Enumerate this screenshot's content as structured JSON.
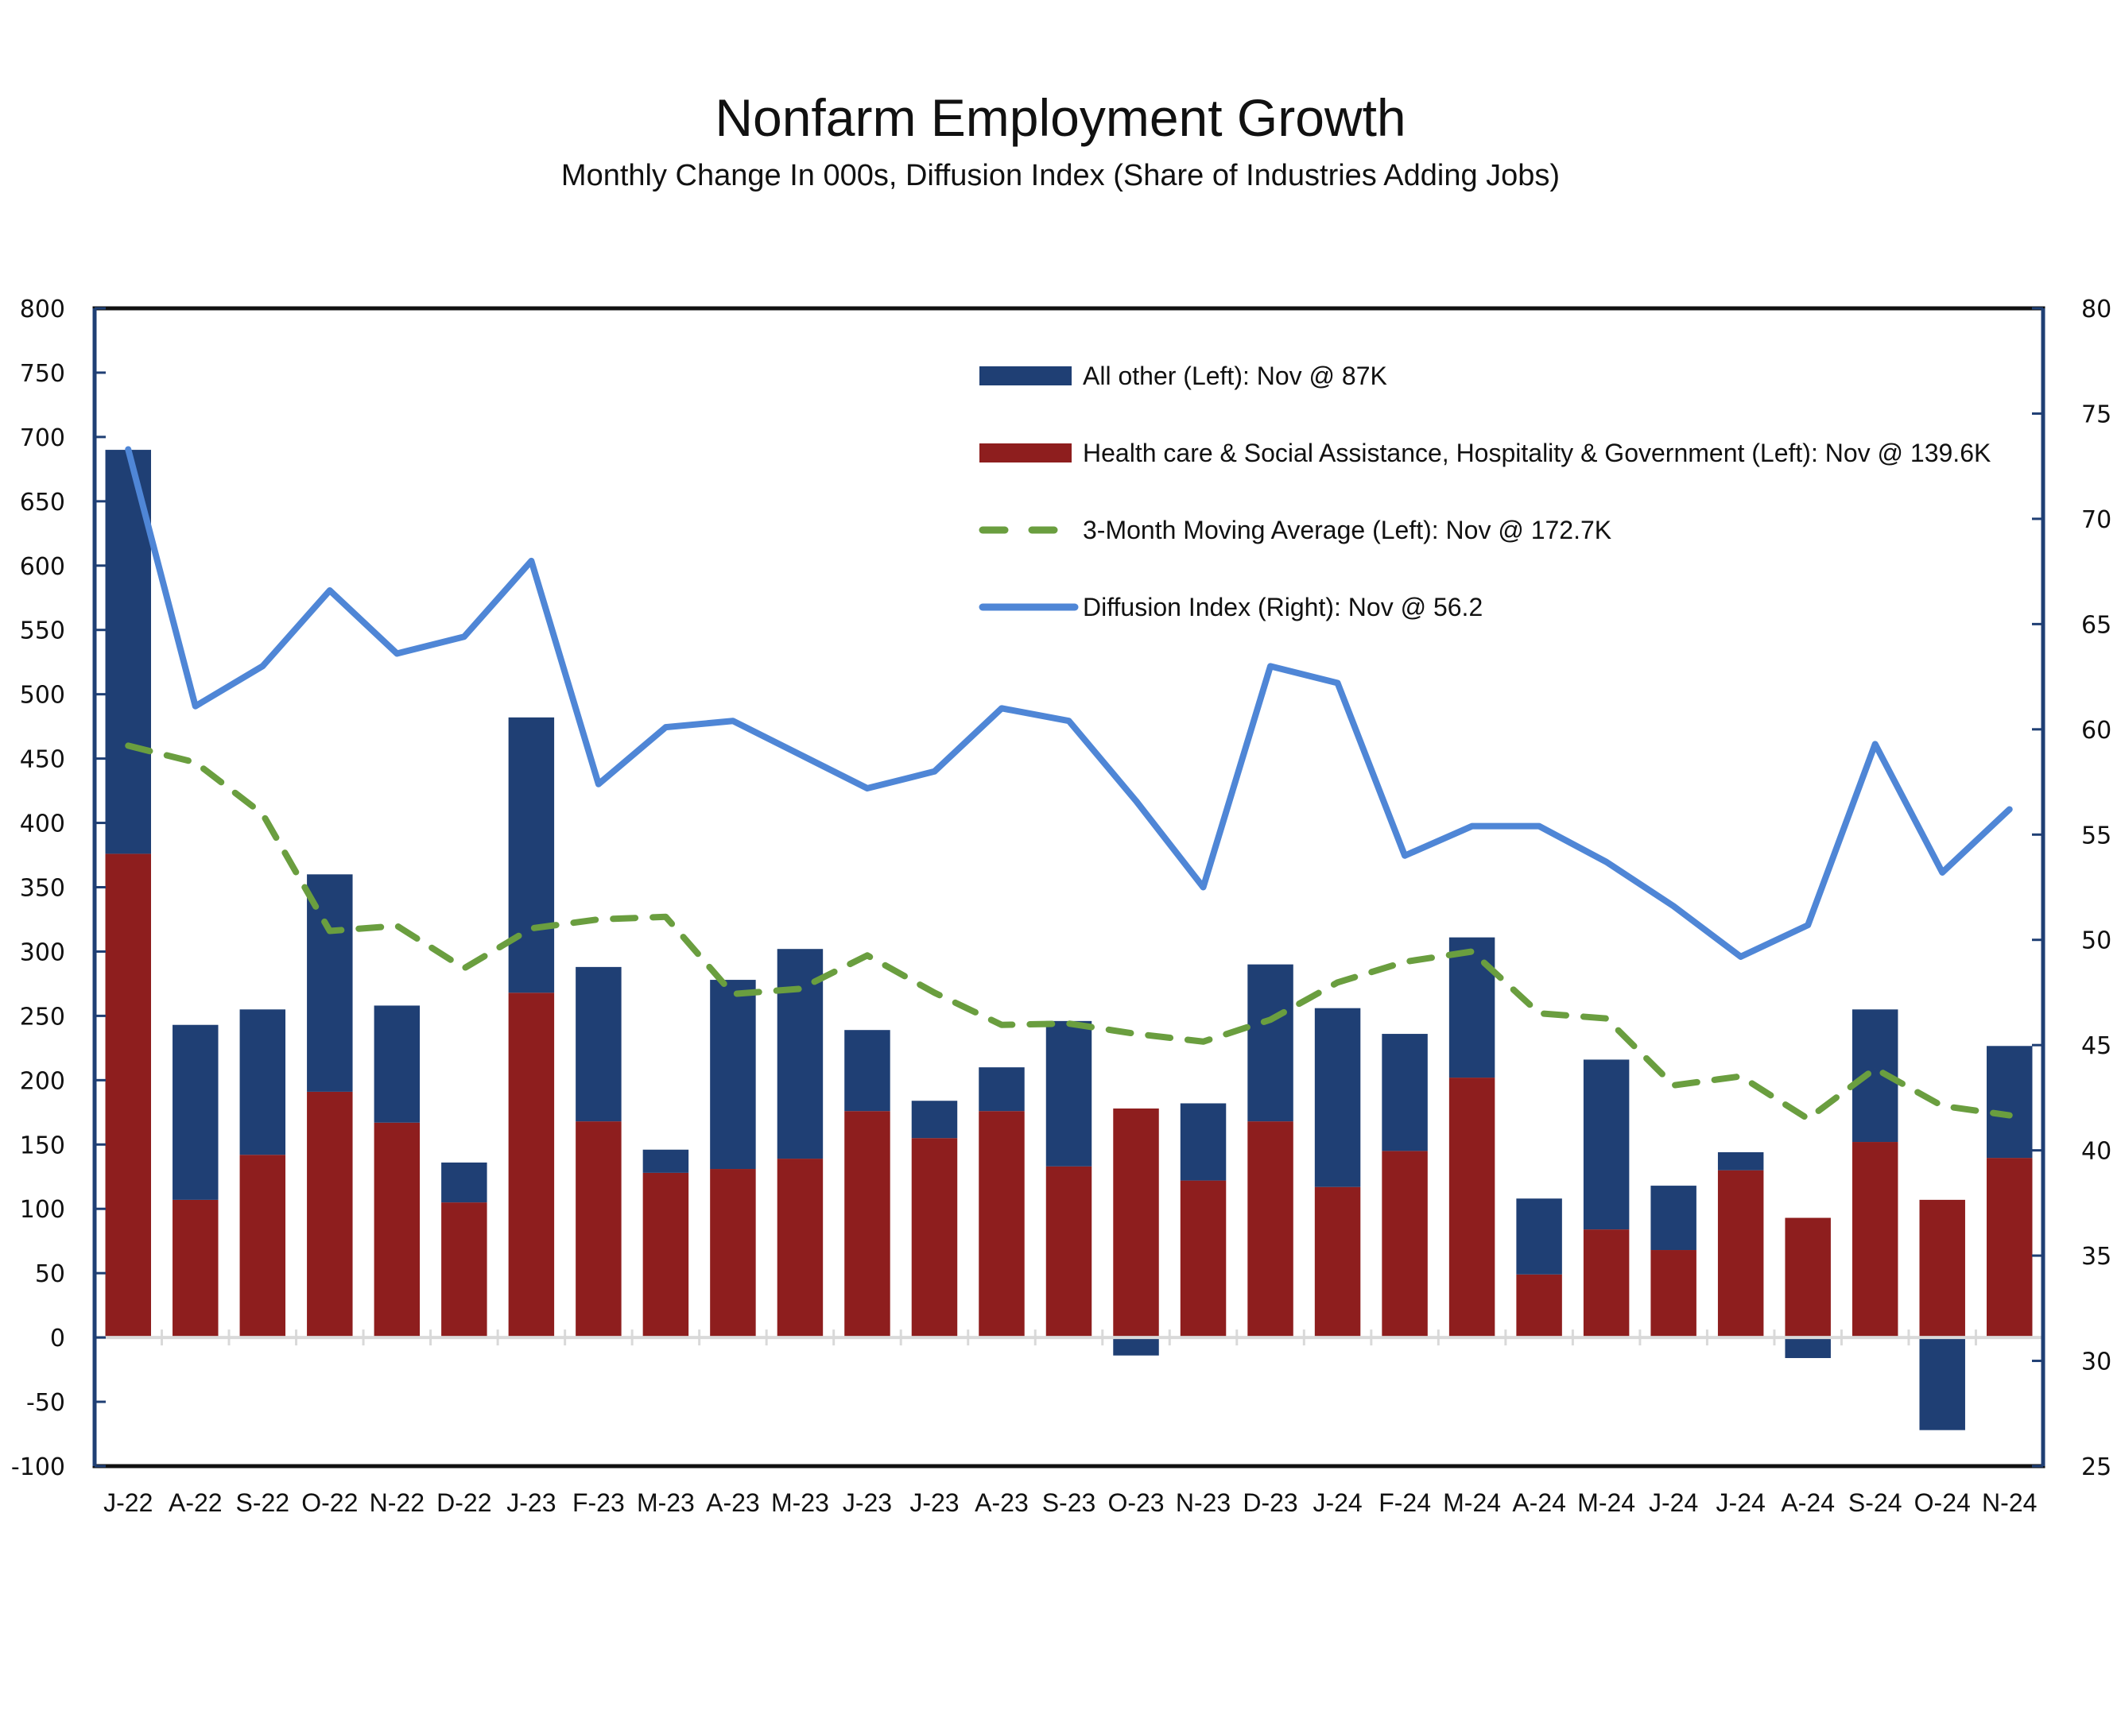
{
  "chart_data": {
    "type": "bar",
    "title": "Nonfarm Employment Growth",
    "subtitle": "Monthly Change In 000s, Diffusion Index (Share of Industries Adding Jobs)",
    "xlabel": "",
    "ylabel_left": "",
    "ylabel_right": "",
    "ylim_left": [
      -100,
      800
    ],
    "ylim_right": [
      25,
      80
    ],
    "yticks_left": [
      800,
      750,
      700,
      650,
      600,
      550,
      500,
      450,
      400,
      350,
      300,
      250,
      200,
      150,
      100,
      50,
      0,
      -50,
      -100
    ],
    "yticks_right": [
      80,
      75,
      70,
      65,
      60,
      55,
      50,
      45,
      40,
      35,
      30,
      25
    ],
    "grid": false,
    "legend_position": "top-right",
    "categories": [
      "J-22",
      "A-22",
      "S-22",
      "O-22",
      "N-22",
      "D-22",
      "J-23",
      "F-23",
      "M-23",
      "A-23",
      "M-23",
      "J-23",
      "J-23",
      "A-23",
      "S-23",
      "O-23",
      "N-23",
      "D-23",
      "J-24",
      "F-24",
      "M-24",
      "A-24",
      "M-24",
      "J-24",
      "J-24",
      "A-24",
      "S-24",
      "O-24",
      "N-24"
    ],
    "series": [
      {
        "name": "Health care & Social Assistance, Hospitality & Government (Left): Nov @ 139.6K",
        "kind": "stacked-bar",
        "axis": "left",
        "color": "#8e1e1e",
        "values": [
          376,
          107,
          142,
          191,
          167,
          105,
          268,
          168,
          128,
          131,
          139,
          176,
          155,
          176,
          133,
          178,
          122,
          168,
          117,
          145,
          202,
          49,
          84,
          68,
          130,
          93,
          152,
          107,
          139.6
        ]
      },
      {
        "name": "All other (Left): Nov @ 87K",
        "kind": "stacked-bar",
        "axis": "left",
        "color": "#1f3f74",
        "values": [
          314,
          136,
          113,
          169,
          91,
          31,
          214,
          120,
          18,
          147,
          163,
          63,
          29,
          34,
          113,
          -14,
          60,
          122,
          139,
          91,
          109,
          59,
          132,
          50,
          14,
          -16,
          103,
          -72,
          87
        ]
      },
      {
        "name": "3-Month Moving Average (Left): Nov @ 172.7K",
        "kind": "dashed-line",
        "axis": "left",
        "color": "#6a9e3f",
        "values": [
          460,
          447,
          407,
          316,
          320,
          287,
          318,
          325,
          327,
          267,
          271,
          297,
          268,
          243,
          244,
          236,
          230,
          247,
          276,
          292,
          300,
          252,
          248,
          196,
          203,
          170,
          209,
          180,
          172.7
        ]
      },
      {
        "name": "Diffusion Index (Right): Nov @ 56.2",
        "kind": "line",
        "axis": "right",
        "color": "#4f86d6",
        "values": [
          73.3,
          61.1,
          63.0,
          66.6,
          63.6,
          64.4,
          68.0,
          57.4,
          60.1,
          60.4,
          58.8,
          57.2,
          58.0,
          61.0,
          60.4,
          56.6,
          52.5,
          63.0,
          62.2,
          54.0,
          55.4,
          55.4,
          53.7,
          51.6,
          49.2,
          50.7,
          59.3,
          53.2,
          56.2
        ]
      }
    ]
  }
}
